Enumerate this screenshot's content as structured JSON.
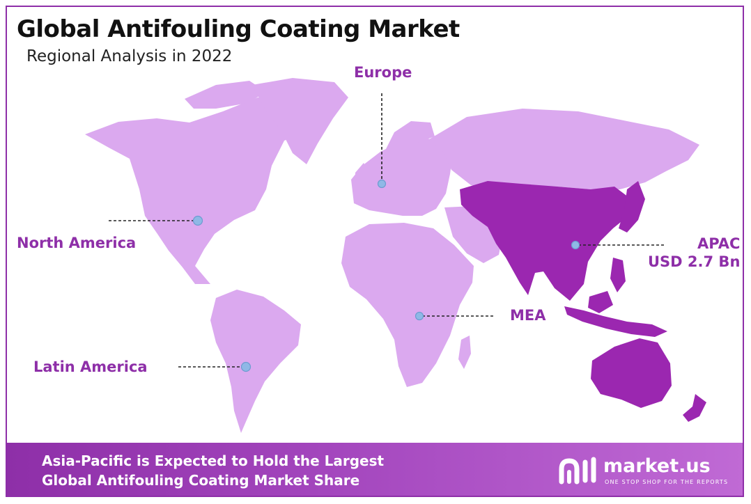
{
  "title": "Global Antifouling Coating Market",
  "subtitle": "Regional Analysis in 2022",
  "regions": {
    "europe": {
      "label": "Europe"
    },
    "north_america": {
      "label": "North America"
    },
    "latin_america": {
      "label": "Latin America"
    },
    "mea": {
      "label": "MEA"
    },
    "apac": {
      "label": "APAC",
      "value": "USD 2.7 Bn",
      "highlighted": true
    }
  },
  "colors": {
    "base_land": "#dba9ef",
    "highlight_land": "#9b27b0",
    "accent": "#8e2fa8",
    "marker": "#8fb8e6"
  },
  "footer": {
    "line1": "Asia-Pacific is Expected to Hold the Largest",
    "line2": "Global Antifouling Coating Market Share"
  },
  "brand": {
    "name": "market.us",
    "tagline": "ONE STOP SHOP FOR THE REPORTS"
  }
}
